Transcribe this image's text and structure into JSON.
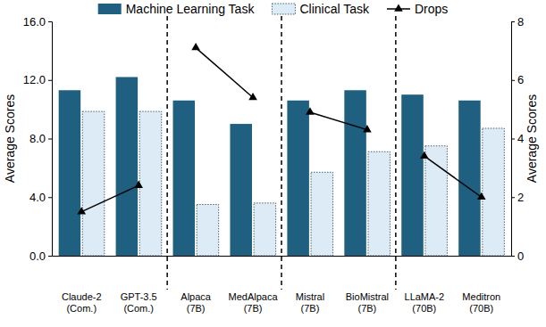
{
  "chart_data": {
    "type": "bar",
    "categories": [
      "Claude-2 (Com.)",
      "GPT-3.5 (Com.)",
      "Alpaca (7B)",
      "MedAlpaca (7B)",
      "Mistral (7B)",
      "BioMistral (7B)",
      "LLaMA-2 (70B)",
      "Meditron (70B)"
    ],
    "groups": [
      2,
      2,
      2,
      2
    ],
    "series": [
      {
        "name": "Machine Learning Task",
        "color": "#1f5f80",
        "values": [
          11.3,
          12.2,
          10.6,
          9.0,
          10.6,
          11.3,
          11.0,
          10.6
        ]
      },
      {
        "name": "Clinical Task",
        "color": "#ddebf7",
        "values": [
          9.85,
          9.85,
          3.5,
          3.6,
          5.7,
          7.1,
          7.5,
          8.7
        ]
      },
      {
        "name": "Drops",
        "type": "line",
        "axis": "y2",
        "color": "#000000",
        "marker": "triangle",
        "values": [
          1.5,
          2.4,
          7.1,
          5.4,
          4.9,
          4.3,
          3.4,
          2.0
        ]
      }
    ],
    "y_label": "Average Scores",
    "y2_label": "Average Scores",
    "ylim": [
      0,
      16
    ],
    "yticks": [
      {
        "value": 0,
        "label": "0.0"
      },
      {
        "value": 4,
        "label": "4.0"
      },
      {
        "value": 8,
        "label": "8.0"
      },
      {
        "value": 12,
        "label": "12.0"
      },
      {
        "value": 16,
        "label": "16.0"
      }
    ],
    "y2lim": [
      0,
      8
    ],
    "y2ticks": [
      0,
      2,
      4,
      6,
      8
    ],
    "legend": "top"
  }
}
